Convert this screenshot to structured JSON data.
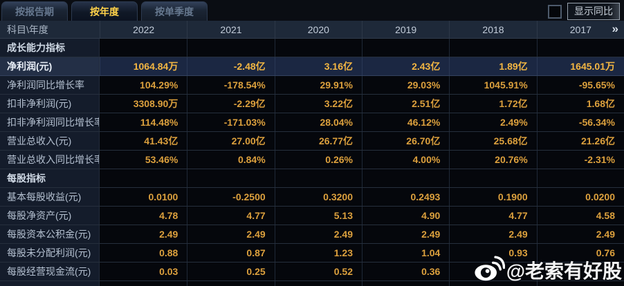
{
  "tabs": [
    {
      "id": "by-report-period",
      "label": "按报告期",
      "active": false
    },
    {
      "id": "by-year",
      "label": "按年度",
      "active": true
    },
    {
      "id": "by-quarter",
      "label": "按单季度",
      "active": false
    }
  ],
  "controls": {
    "show_yoy_label": "显示同比",
    "show_yoy_checked": false
  },
  "table": {
    "corner_header": "科目\\年度",
    "year_columns": [
      "2022",
      "2021",
      "2020",
      "2019",
      "2018",
      "2017"
    ],
    "more_columns_icon": "»",
    "rows": [
      {
        "type": "section",
        "label": "成长能力指标",
        "values": [
          "",
          "",
          "",
          "",
          "",
          ""
        ]
      },
      {
        "type": "highlight",
        "label": "净利润(元)",
        "values": [
          "1064.84万",
          "-2.48亿",
          "3.16亿",
          "2.43亿",
          "1.89亿",
          "1645.01万"
        ]
      },
      {
        "type": "normal",
        "label": "净利润同比增长率",
        "values": [
          "104.29%",
          "-178.54%",
          "29.91%",
          "29.03%",
          "1045.91%",
          "-95.65%"
        ]
      },
      {
        "type": "normal",
        "label": "扣非净利润(元)",
        "values": [
          "3308.90万",
          "-2.29亿",
          "3.22亿",
          "2.51亿",
          "1.72亿",
          "1.68亿"
        ]
      },
      {
        "type": "normal",
        "label": "扣非净利润同比增长率",
        "values": [
          "114.48%",
          "-171.03%",
          "28.04%",
          "46.12%",
          "2.49%",
          "-56.34%"
        ]
      },
      {
        "type": "normal",
        "label": "营业总收入(元)",
        "values": [
          "41.43亿",
          "27.00亿",
          "26.77亿",
          "26.70亿",
          "25.68亿",
          "21.26亿"
        ]
      },
      {
        "type": "normal",
        "label": "营业总收入同比增长率",
        "values": [
          "53.46%",
          "0.84%",
          "0.26%",
          "4.00%",
          "20.76%",
          "-2.31%"
        ]
      },
      {
        "type": "section",
        "label": "每股指标",
        "values": [
          "",
          "",
          "",
          "",
          "",
          ""
        ]
      },
      {
        "type": "normal",
        "label": "基本每股收益(元)",
        "values": [
          "0.0100",
          "-0.2500",
          "0.3200",
          "0.2493",
          "0.1900",
          "0.0200"
        ]
      },
      {
        "type": "normal",
        "label": "每股净资产(元)",
        "values": [
          "4.78",
          "4.77",
          "5.13",
          "4.90",
          "4.77",
          "4.58"
        ]
      },
      {
        "type": "normal",
        "label": "每股资本公积金(元)",
        "values": [
          "2.49",
          "2.49",
          "2.49",
          "2.49",
          "2.49",
          "2.49"
        ]
      },
      {
        "type": "normal",
        "label": "每股未分配利润(元)",
        "values": [
          "0.88",
          "0.87",
          "1.23",
          "1.04",
          "0.93",
          "0.76"
        ]
      },
      {
        "type": "normal",
        "label": "每股经营现金流(元)",
        "values": [
          "0.03",
          "0.25",
          "0.52",
          "0.36",
          "",
          ""
        ]
      }
    ]
  },
  "watermark": {
    "text": "@老索有好股",
    "icon": "weibo-icon"
  },
  "colors": {
    "value_gold": "#dca03d",
    "highlight_gold": "#f3b642",
    "active_tab_text": "#ffd24a",
    "highlight_row_bg": "#1b2742",
    "header_bg": "#1e2939",
    "label_col_bg": "#141c2b"
  }
}
